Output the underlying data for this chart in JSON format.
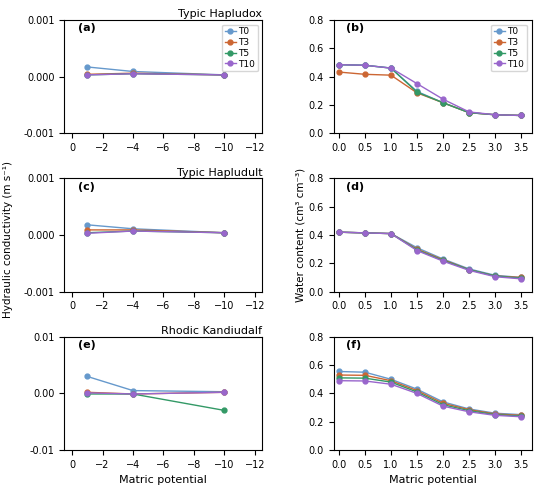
{
  "titles": [
    "Typic Hapludox",
    "Typic Hapludult",
    "Rhodic Kandiudalf"
  ],
  "xlabel": "Matric potential",
  "ylabel_left": "Hydraulic conductivity (m s⁻¹)",
  "ylabel_right": "Water content (cm³ cm⁻³)",
  "legend_labels": [
    "T0",
    "T3",
    "T5",
    "T10"
  ],
  "colors": [
    "#6699CC",
    "#CC6633",
    "#339966",
    "#9966CC"
  ],
  "hc_xvals": [
    -1,
    -4,
    -10
  ],
  "hc_xticks": [
    0,
    -2,
    -4,
    -6,
    -8,
    -10,
    -12
  ],
  "hc_xlim": [
    0.5,
    -12.5
  ],
  "hc_a": {
    "T0": [
      0.00017,
      9e-05,
      3e-05
    ],
    "T3": [
      4e-05,
      6e-05,
      3e-05
    ],
    "T5": [
      3e-05,
      5e-05,
      3e-05
    ],
    "T10": [
      3e-05,
      5e-05,
      3e-05
    ]
  },
  "hc_a_ylim": [
    -0.001,
    0.001
  ],
  "hc_a_yticks": [
    -0.001,
    0.0,
    0.001
  ],
  "hc_c": {
    "T0": [
      0.00018,
      0.00011,
      4e-05
    ],
    "T3": [
      9e-05,
      9e-05,
      4e-05
    ],
    "T5": [
      4e-05,
      7e-05,
      4e-05
    ],
    "T10": [
      3e-05,
      7e-05,
      4e-05
    ]
  },
  "hc_c_ylim": [
    -0.001,
    0.001
  ],
  "hc_c_yticks": [
    -0.001,
    0.0,
    0.001
  ],
  "hc_e": {
    "T0": [
      0.003,
      0.0005,
      0.0003
    ],
    "T3": [
      0.0002,
      -0.0001,
      0.0002
    ],
    "T5": [
      -0.0001,
      -0.0001,
      -0.003
    ],
    "T10": [
      0.0001,
      -0.0001,
      0.0002
    ]
  },
  "hc_e_ylim": [
    -0.01,
    0.01
  ],
  "hc_e_yticks": [
    -0.01,
    0.0,
    0.01
  ],
  "swrc_xvals": [
    0.0,
    0.5,
    1.0,
    1.5,
    2.0,
    2.5,
    3.0,
    3.5
  ],
  "swrc_xticks": [
    0.0,
    0.5,
    1.0,
    1.5,
    2.0,
    2.5,
    3.0,
    3.5
  ],
  "swrc_xlim": [
    -0.1,
    3.7
  ],
  "swrc_b": {
    "T0": [
      0.484,
      0.48,
      0.46,
      0.295,
      0.215,
      0.145,
      0.13,
      0.125
    ],
    "T3": [
      0.432,
      0.416,
      0.41,
      0.285,
      0.215,
      0.145,
      0.13,
      0.125
    ],
    "T5": [
      0.484,
      0.48,
      0.46,
      0.29,
      0.215,
      0.145,
      0.13,
      0.125
    ],
    "T10": [
      0.484,
      0.48,
      0.46,
      0.35,
      0.24,
      0.15,
      0.13,
      0.125
    ]
  },
  "swrc_b_ylim": [
    0.0,
    0.8
  ],
  "swrc_b_yticks": [
    0.0,
    0.2,
    0.4,
    0.6,
    0.8
  ],
  "swrc_d": {
    "T0": [
      0.42,
      0.415,
      0.41,
      0.31,
      0.23,
      0.16,
      0.115,
      0.1
    ],
    "T3": [
      0.42,
      0.415,
      0.41,
      0.3,
      0.225,
      0.155,
      0.11,
      0.1
    ],
    "T5": [
      0.42,
      0.415,
      0.41,
      0.295,
      0.22,
      0.155,
      0.11,
      0.095
    ],
    "T10": [
      0.42,
      0.415,
      0.41,
      0.29,
      0.215,
      0.15,
      0.105,
      0.09
    ]
  },
  "swrc_d_ylim": [
    0.0,
    0.8
  ],
  "swrc_d_yticks": [
    0.0,
    0.2,
    0.4,
    0.6,
    0.8
  ],
  "swrc_f": {
    "T0": [
      0.555,
      0.55,
      0.5,
      0.43,
      0.34,
      0.29,
      0.26,
      0.25
    ],
    "T3": [
      0.53,
      0.528,
      0.49,
      0.42,
      0.33,
      0.285,
      0.255,
      0.245
    ],
    "T5": [
      0.51,
      0.508,
      0.48,
      0.41,
      0.32,
      0.278,
      0.25,
      0.24
    ],
    "T10": [
      0.49,
      0.488,
      0.465,
      0.4,
      0.31,
      0.27,
      0.245,
      0.235
    ]
  },
  "swrc_f_ylim": [
    0.0,
    0.8
  ],
  "swrc_f_yticks": [
    0.0,
    0.2,
    0.4,
    0.6,
    0.8
  ],
  "panel_labels": [
    "(a)",
    "(b)",
    "(c)",
    "(d)",
    "(e)",
    "(f)"
  ]
}
